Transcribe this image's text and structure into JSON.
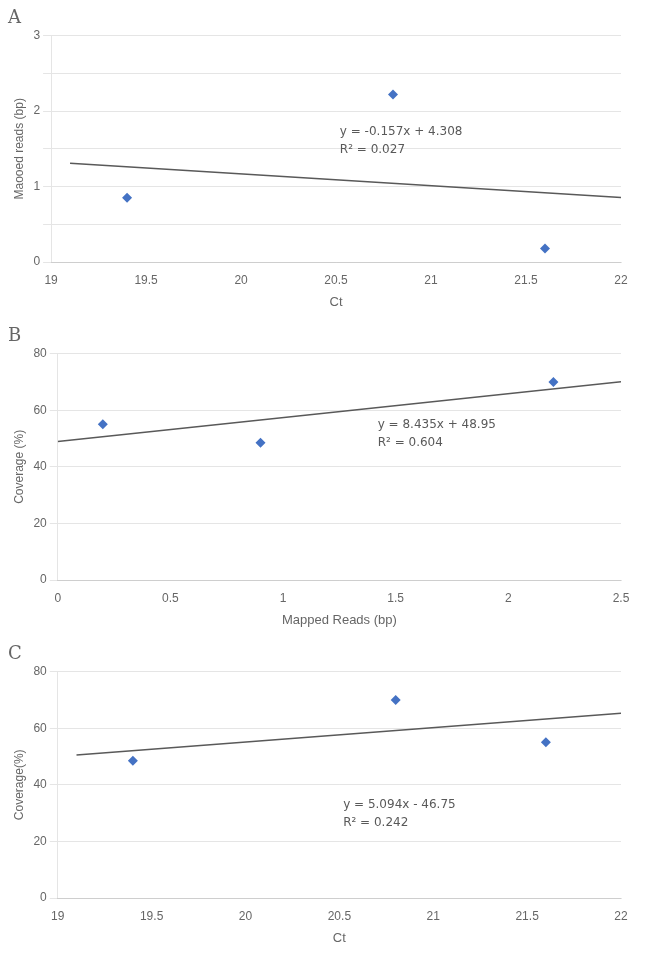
{
  "chart_data": [
    {
      "type": "scatter",
      "title": "A",
      "xlabel": "Ct",
      "ylabel": "Maooed reads (bp)",
      "xlim": [
        19,
        22
      ],
      "ylim": [
        0,
        3
      ],
      "xticks": [
        19,
        19.5,
        20,
        20.5,
        21,
        21.5,
        22
      ],
      "yticks": [
        0,
        {
          "value": 0.5,
          "label": null
        },
        1,
        {
          "value": 1.5,
          "label": null
        },
        2,
        {
          "value": 2.5,
          "label": null
        },
        3
      ],
      "grid": "y",
      "series": [
        {
          "type": "scatter",
          "marker": "diamond",
          "color": "#4472C4",
          "x": [
            19.4,
            20.8,
            21.6
          ],
          "values": [
            0.85,
            2.22,
            0.18
          ]
        },
        {
          "type": "line",
          "color": "#595959",
          "x": [
            19.1,
            22.0
          ],
          "values": [
            1.3093,
            0.854
          ]
        }
      ],
      "annotations": [
        {
          "x": 20.52,
          "y": 1.8,
          "color": "#595959",
          "text": "y = -0.157x + 4.308\nR² = 0.027"
        }
      ]
    },
    {
      "type": "scatter",
      "title": "B",
      "xlabel": "Mapped Reads (bp)",
      "ylabel": "Coverage (%)",
      "xlim": [
        0,
        2.5
      ],
      "ylim": [
        0,
        80
      ],
      "xticks": [
        0,
        0.5,
        1,
        1.5,
        2,
        2.5
      ],
      "yticks": [
        0,
        20,
        40,
        60,
        80
      ],
      "grid": "y",
      "series": [
        {
          "type": "scatter",
          "marker": "diamond",
          "color": "#4472C4",
          "x": [
            0.2,
            0.9,
            2.2
          ],
          "values": [
            55.0,
            48.5,
            70.0
          ]
        },
        {
          "type": "line",
          "color": "#595959",
          "x": [
            0.0,
            2.5
          ],
          "values": [
            48.95,
            70.0375
          ]
        }
      ],
      "annotations": [
        {
          "x": 1.42,
          "y": 57,
          "color": "#595959",
          "text": "y = 8.435x + 48.95\nR² = 0.604"
        }
      ]
    },
    {
      "type": "scatter",
      "title": "C",
      "xlabel": "Ct",
      "ylabel": "Coverage(%)",
      "xlim": [
        19,
        22
      ],
      "ylim": [
        0,
        80
      ],
      "xticks": [
        19,
        19.5,
        20,
        20.5,
        21,
        21.5,
        22
      ],
      "yticks": [
        0,
        20,
        40,
        60,
        80
      ],
      "grid": "y",
      "series": [
        {
          "type": "scatter",
          "marker": "diamond",
          "color": "#4472C4",
          "x": [
            19.4,
            20.8,
            21.6
          ],
          "values": [
            48.5,
            70.0,
            55.0
          ]
        },
        {
          "type": "line",
          "color": "#595959",
          "x": [
            19.1,
            22.0
          ],
          "values": [
            50.5454,
            65.318
          ]
        }
      ],
      "annotations": [
        {
          "x": 20.52,
          "y": 35,
          "color": "#595959",
          "text": "y = 5.094x - 46.75\nR² = 0.242"
        }
      ]
    }
  ]
}
